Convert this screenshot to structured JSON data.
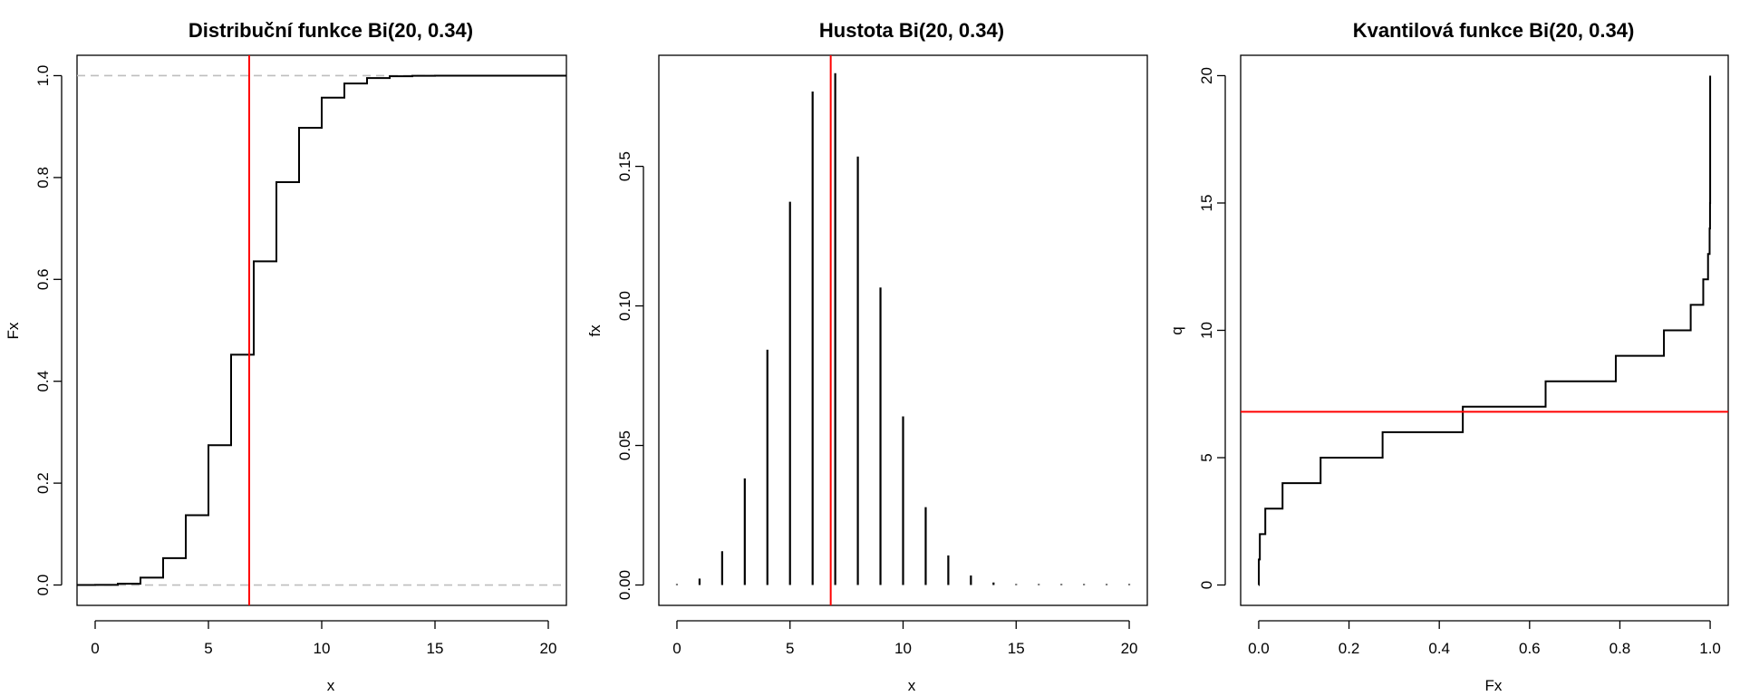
{
  "colors": {
    "line": "#000000",
    "marker": "#ff0000",
    "guide": "#bebebe"
  },
  "charts": [
    {
      "title": "Distribuční funkce Bi(20, 0.34)",
      "xlabel": "x",
      "ylabel": "Fx"
    },
    {
      "title": "Hustota Bi(20, 0.34)",
      "xlabel": "x",
      "ylabel": "fx"
    },
    {
      "title": "Kvantilová funkce Bi(20, 0.34)",
      "xlabel": "Fx",
      "ylabel": "q"
    }
  ],
  "chart_data": [
    {
      "type": "line",
      "step": true,
      "title": "Distribuční funkce Bi(20, 0.34)",
      "xlabel": "x",
      "ylabel": "Fx",
      "xlim": [
        -0.8,
        20.8
      ],
      "ylim": [
        -0.04,
        1.04
      ],
      "x_ticks": [
        0,
        5,
        10,
        15,
        20
      ],
      "y_ticks": [
        0.0,
        0.2,
        0.4,
        0.6,
        0.8,
        1.0
      ],
      "x_tick_labels": [
        "0",
        "5",
        "10",
        "15",
        "20"
      ],
      "y_tick_labels": [
        "0.0",
        "0.2",
        "0.4",
        "0.6",
        "0.8",
        "1.0"
      ],
      "x": [
        0,
        1,
        2,
        3,
        4,
        5,
        6,
        7,
        8,
        9,
        10,
        11,
        12,
        13,
        14,
        15,
        16,
        17,
        18,
        19,
        20
      ],
      "y": [
        0.0002,
        0.0025,
        0.0146,
        0.0528,
        0.1371,
        0.2744,
        0.4521,
        0.6355,
        0.791,
        0.8976,
        0.9569,
        0.9847,
        0.9953,
        0.9988,
        0.9997,
        1.0,
        1.0,
        1.0,
        1.0,
        1.0,
        1.0
      ],
      "hlines": [
        0,
        1
      ],
      "vline": 6.8,
      "grid": false
    },
    {
      "type": "bar",
      "style": "spikes",
      "title": "Hustota Bi(20, 0.34)",
      "xlabel": "x",
      "ylabel": "fx",
      "xlim": [
        -0.8,
        20.8
      ],
      "ylim": [
        -0.0073,
        0.1898
      ],
      "x_ticks": [
        0,
        5,
        10,
        15,
        20
      ],
      "y_ticks": [
        0.0,
        0.05,
        0.1,
        0.15
      ],
      "x_tick_labels": [
        "0",
        "5",
        "10",
        "15",
        "20"
      ],
      "y_tick_labels": [
        "0.00",
        "0.05",
        "0.10",
        "0.15"
      ],
      "x": [
        0,
        1,
        2,
        3,
        4,
        5,
        6,
        7,
        8,
        9,
        10,
        11,
        12,
        13,
        14,
        15,
        16,
        17,
        18,
        19,
        20
      ],
      "values": [
        0.0002,
        0.0023,
        0.0121,
        0.0382,
        0.0843,
        0.1373,
        0.1768,
        0.1834,
        0.1535,
        0.1066,
        0.0604,
        0.0279,
        0.0106,
        0.0034,
        0.0009,
        0.0002,
        4e-05,
        1e-05,
        0,
        0,
        0
      ],
      "vline": 6.8,
      "grid": false
    },
    {
      "type": "line",
      "step": true,
      "title": "Kvantilová funkce Bi(20, 0.34)",
      "xlabel": "Fx",
      "ylabel": "q",
      "xlim": [
        -0.04,
        1.04
      ],
      "ylim": [
        -0.8,
        20.8
      ],
      "x_ticks": [
        0.0,
        0.2,
        0.4,
        0.6,
        0.8,
        1.0
      ],
      "y_ticks": [
        0,
        5,
        10,
        15,
        20
      ],
      "x_tick_labels": [
        "0.0",
        "0.2",
        "0.4",
        "0.6",
        "0.8",
        "1.0"
      ],
      "y_tick_labels": [
        "0",
        "5",
        "10",
        "15",
        "20"
      ],
      "x": [
        0.0002,
        0.0025,
        0.0146,
        0.0528,
        0.1371,
        0.2744,
        0.4521,
        0.6355,
        0.791,
        0.8976,
        0.9569,
        0.9847,
        0.9953,
        0.9988,
        0.9997,
        1.0,
        1.0,
        1.0,
        1.0,
        1.0,
        1.0
      ],
      "y": [
        0,
        1,
        2,
        3,
        4,
        5,
        6,
        7,
        8,
        9,
        10,
        11,
        12,
        13,
        14,
        15,
        16,
        17,
        18,
        19,
        20
      ],
      "hline": 6.8,
      "grid": false
    }
  ]
}
